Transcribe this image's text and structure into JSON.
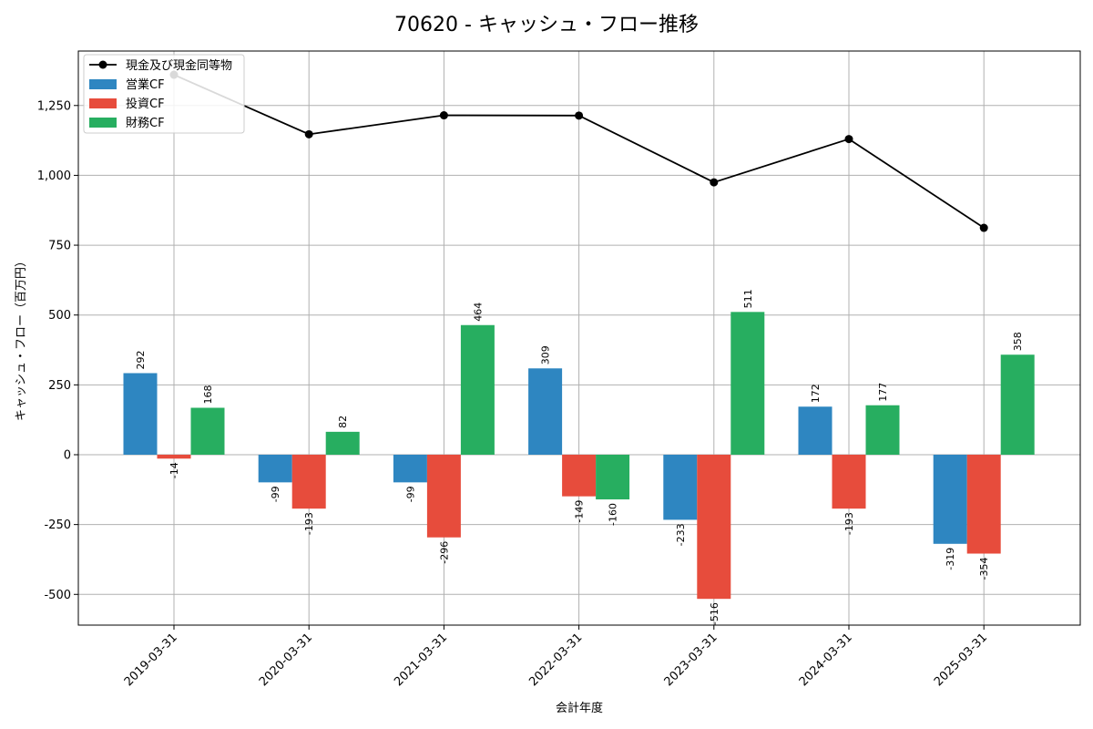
{
  "chart_data": {
    "type": "bar",
    "title": "70620 - キャッシュ・フロー推移",
    "xlabel": "会計年度",
    "ylabel": "キャッシュ・フロー（百万円）",
    "ylim": [
      -610,
      1445
    ],
    "yticks": [
      -500,
      -250,
      0,
      250,
      500,
      750,
      1000,
      1250
    ],
    "ytick_labels": [
      "-500",
      "-250",
      "0",
      "250",
      "500",
      "750",
      "1,000",
      "1,250"
    ],
    "grid": true,
    "legend_position": "top-left",
    "categories": [
      "2019-03-31",
      "2020-03-31",
      "2021-03-31",
      "2022-03-31",
      "2023-03-31",
      "2024-03-31",
      "2025-03-31"
    ],
    "series": [
      {
        "name": "営業CF",
        "type": "bar",
        "color": "#2e86c1",
        "values": [
          292,
          -99,
          -99,
          309,
          -233,
          172,
          -319
        ],
        "labels": [
          "292",
          "-99",
          "-99",
          "309",
          "-233",
          "172",
          "-319"
        ]
      },
      {
        "name": "投資CF",
        "type": "bar",
        "color": "#e74c3c",
        "values": [
          -14,
          -193,
          -296,
          -149,
          -516,
          -193,
          -354
        ],
        "labels": [
          "-14",
          "-193",
          "-296",
          "-149",
          "-516",
          "-193",
          "-354"
        ]
      },
      {
        "name": "財務CF",
        "type": "bar",
        "color": "#27ae60",
        "values": [
          168,
          82,
          464,
          -160,
          511,
          177,
          358
        ],
        "labels": [
          "168",
          "82",
          "464",
          "-160",
          "511",
          "177",
          "358"
        ]
      },
      {
        "name": "現金及び現金同等物",
        "type": "line",
        "color": "#000000",
        "values": [
          1360,
          1147,
          1215,
          1214,
          975,
          1130,
          812
        ]
      }
    ]
  }
}
